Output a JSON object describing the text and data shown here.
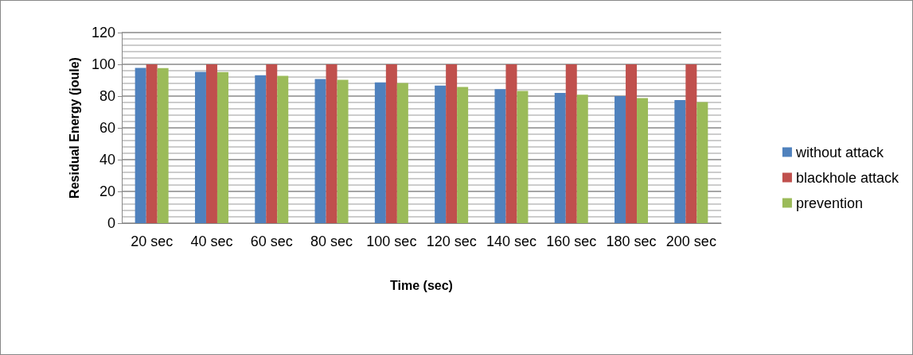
{
  "chart_data": {
    "type": "bar",
    "xlabel": "Time (sec)",
    "ylabel": "Residual Energy (joule)",
    "categories": [
      "20 sec",
      "40 sec",
      "60 sec",
      "80 sec",
      "100 sec",
      "120 sec",
      "140 sec",
      "160 sec",
      "180 sec",
      "200 sec"
    ],
    "series": [
      {
        "name": "without attack",
        "color": "#4f81bd",
        "values": [
          97.7,
          95.3,
          93.1,
          90.8,
          88.6,
          86.6,
          84.4,
          82.0,
          80.0,
          77.5
        ]
      },
      {
        "name": "blackhole attack",
        "color": "#c0504d",
        "values": [
          100,
          100,
          100,
          100,
          100,
          100,
          100,
          100,
          100,
          100
        ]
      },
      {
        "name": "prevention",
        "color": "#9bbb59",
        "values": [
          97.6,
          95.1,
          92.8,
          90.3,
          88.3,
          85.7,
          83.2,
          80.9,
          78.7,
          76.2
        ]
      }
    ],
    "ylim": [
      0,
      120
    ],
    "yticks": [
      0,
      20,
      40,
      60,
      80,
      100,
      120
    ],
    "grid": "y",
    "legend": "right"
  }
}
